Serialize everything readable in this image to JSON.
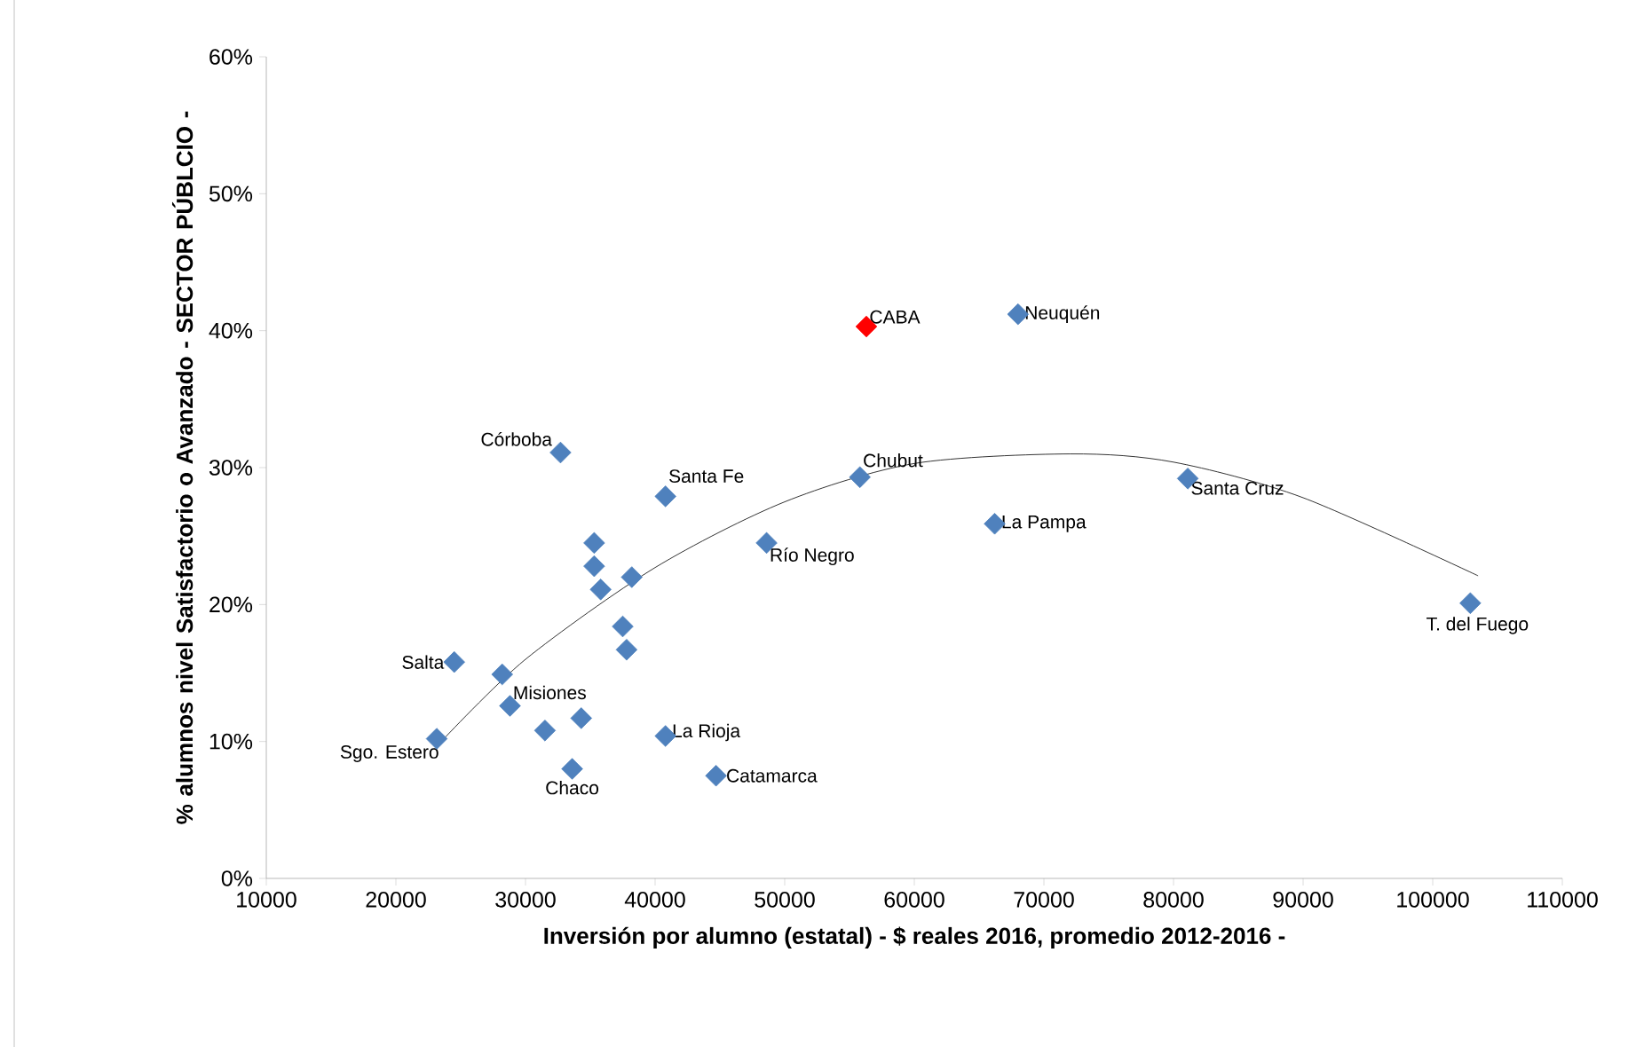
{
  "chart_data": {
    "type": "scatter",
    "xlabel": "Inversión por alumno (estatal) - $ reales 2016, promedio 2012-2016 -",
    "ylabel": "% alumnos nivel Satisfactorio o Avanzado - SECTOR PÚBLCIO -",
    "xlim": [
      10000,
      110000
    ],
    "xticks": [
      10000,
      20000,
      30000,
      40000,
      50000,
      60000,
      70000,
      80000,
      90000,
      100000,
      110000
    ],
    "ylim": [
      0,
      60
    ],
    "yticks": [
      {
        "value": 0,
        "label": "0%"
      },
      {
        "value": 10,
        "label": "10%"
      },
      {
        "value": 20,
        "label": "20%"
      },
      {
        "value": 30,
        "label": "30%"
      },
      {
        "value": 40,
        "label": "40%"
      },
      {
        "value": 50,
        "label": "50%"
      },
      {
        "value": 60,
        "label": "60%"
      }
    ],
    "marker": "diamond",
    "grid": false,
    "legend": false,
    "series": [
      {
        "color": "#4f81bd",
        "x": [
          23150,
          24500,
          28200,
          28800,
          31500,
          34300,
          33600,
          32700,
          35300,
          35300,
          35800,
          38200,
          37500,
          37800,
          40800,
          40800,
          44700,
          48600,
          55800,
          68000,
          66200,
          81100,
          102900
        ],
        "values": [
          10.2,
          15.8,
          14.9,
          12.6,
          10.8,
          11.7,
          8.0,
          31.1,
          24.5,
          22.8,
          21.1,
          22.0,
          18.4,
          16.7,
          27.9,
          10.4,
          7.5,
          24.5,
          29.3,
          41.2,
          25.9,
          29.2,
          20.1
        ]
      },
      {
        "color": "#ff0000",
        "x": [
          56300
        ],
        "values": [
          40.3
        ]
      },
      {
        "type": "line",
        "color": "#000000",
        "marker": "none",
        "x": [
          23500,
          30000,
          40000,
          50000,
          60000,
          72000,
          80000,
          90000,
          103500
        ],
        "values": [
          10,
          16,
          22.7,
          27.5,
          30.3,
          31,
          30.4,
          27.8,
          22.1
        ]
      }
    ],
    "annotations": [
      {
        "text": "CABA",
        "x": 56300,
        "y": 40.3
      },
      {
        "text": "Neuquén",
        "x": 68000,
        "y": 41.2
      },
      {
        "text": "Córboba",
        "x": 32700,
        "y": 31.1
      },
      {
        "text": "Santa Fe",
        "x": 40800,
        "y": 27.9
      },
      {
        "text": "Chubut",
        "x": 55800,
        "y": 29.3
      },
      {
        "text": "Río Negro",
        "x": 48600,
        "y": 24.5
      },
      {
        "text": "La Pampa",
        "x": 66200,
        "y": 25.9
      },
      {
        "text": "Santa Cruz",
        "x": 81100,
        "y": 29.2
      },
      {
        "text": "T. del Fuego",
        "x": 102900,
        "y": 20.1
      },
      {
        "text": "Salta",
        "x": 24500,
        "y": 15.8
      },
      {
        "text": "Misiones",
        "x": 28800,
        "y": 12.6
      },
      {
        "text": "Sgo. Estero",
        "x": 23150,
        "y": 10.2
      },
      {
        "text": "Chaco",
        "x": 33600,
        "y": 8.0
      },
      {
        "text": "La Rioja",
        "x": 40800,
        "y": 10.4
      },
      {
        "text": "Catamarca",
        "x": 44700,
        "y": 7.5
      }
    ]
  }
}
